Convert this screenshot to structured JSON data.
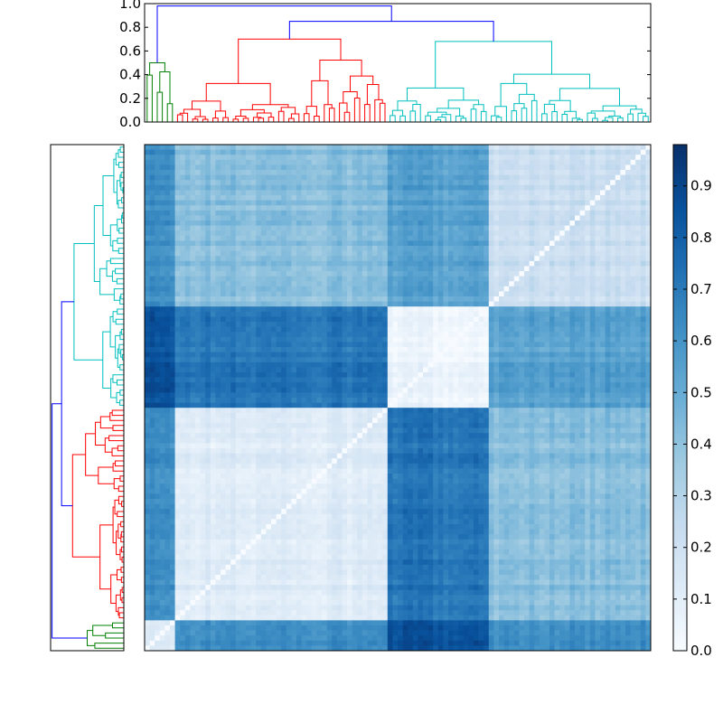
{
  "chart_data": {
    "type": "heatmap",
    "title": "",
    "description_kind": "clustered distance matrix with dendrograms",
    "top_dendrogram": {
      "ylim": [
        0.0,
        1.0
      ],
      "ticks": [
        "0.0",
        "0.2",
        "0.4",
        "0.6",
        "0.8",
        "1.0"
      ],
      "tick_values": [
        0.0,
        0.2,
        0.4,
        0.6,
        0.8,
        1.0
      ]
    },
    "colorbar": {
      "colormap": "Blues",
      "range": [
        0.0,
        0.98
      ],
      "ticks": [
        "0.0",
        "0.1",
        "0.2",
        "0.3",
        "0.4",
        "0.5",
        "0.6",
        "0.7",
        "0.8",
        "0.9"
      ],
      "tick_values": [
        0.0,
        0.1,
        0.2,
        0.3,
        0.4,
        0.5,
        0.6,
        0.7,
        0.8,
        0.9
      ],
      "min_color": "#f7fbff",
      "max_color": "#08306b"
    },
    "clusters": [
      {
        "name": "green",
        "color": "#008000",
        "fraction": 0.06,
        "merge_height": 0.5
      },
      {
        "name": "red",
        "color": "#ff0000",
        "fraction": 0.42,
        "merge_height": 0.7
      },
      {
        "name": "cyan",
        "color": "#00bfbf",
        "fraction": 0.52,
        "merge_height": 0.68
      }
    ],
    "link_color_root": "#0000ff",
    "root_merges": [
      {
        "left": "red",
        "right": "cyan",
        "height": 0.85
      },
      {
        "left": "green",
        "right": "red+cyan",
        "height": 0.98
      }
    ],
    "block_mean_distances": {
      "order": [
        "green",
        "red",
        "cyan_a",
        "cyan_b"
      ],
      "fractions": [
        0.06,
        0.42,
        0.2,
        0.32
      ],
      "matrix": [
        [
          0.12,
          0.62,
          0.85,
          0.62
        ],
        [
          0.62,
          0.12,
          0.72,
          0.42
        ],
        [
          0.85,
          0.72,
          0.05,
          0.55
        ],
        [
          0.62,
          0.42,
          0.55,
          0.22
        ]
      ]
    }
  }
}
